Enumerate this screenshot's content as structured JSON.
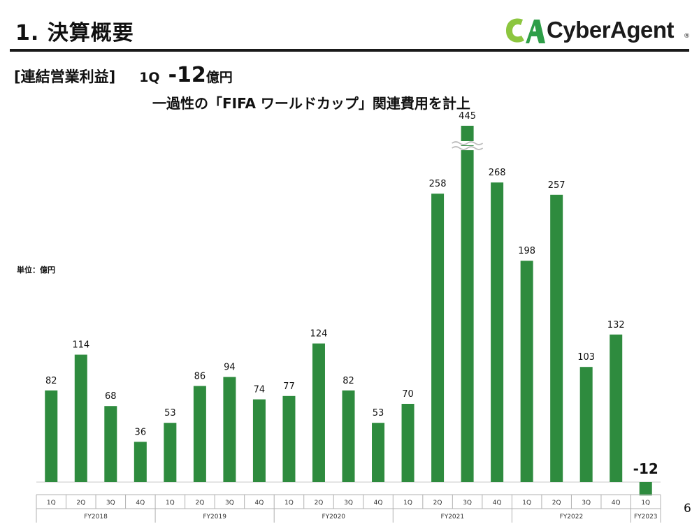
{
  "header": {
    "title": "1.  決算概要",
    "logo_text": "CyberAgent",
    "logo_mark": "CA",
    "logo_registered": "®"
  },
  "headline": {
    "section": "[連結営業利益]",
    "quarter": "1Q",
    "value": "-12",
    "unit": "億円"
  },
  "subheadline": "一過性の「FIFA ワールドカップ」関連費用を計上",
  "unit_note": "単位：億円",
  "page_number": "6",
  "colors": {
    "bar": "#2e8b3e",
    "text": "#111111",
    "logo_green_light": "#8cc63f",
    "logo_green_dark": "#2e9e48"
  },
  "chart_data": {
    "type": "bar",
    "title": "",
    "xlabel": "",
    "ylabel": "",
    "broken_axis_at": "FY2021 3Q",
    "categories": [
      "1Q",
      "2Q",
      "3Q",
      "4Q",
      "1Q",
      "2Q",
      "3Q",
      "4Q",
      "1Q",
      "2Q",
      "3Q",
      "4Q",
      "1Q",
      "2Q",
      "3Q",
      "4Q",
      "1Q",
      "2Q",
      "3Q",
      "4Q",
      "1Q"
    ],
    "groups": [
      {
        "label": "FY2018",
        "count": 4
      },
      {
        "label": "FY2019",
        "count": 4
      },
      {
        "label": "FY2020",
        "count": 4
      },
      {
        "label": "FY2021",
        "count": 4
      },
      {
        "label": "FY2022",
        "count": 4
      },
      {
        "label": "FY2023",
        "count": 1
      }
    ],
    "series": [
      {
        "values": [
          82,
          114,
          68,
          36,
          53,
          86,
          94,
          74,
          77,
          124,
          82,
          53,
          70,
          258,
          445,
          268,
          198,
          257,
          103,
          132,
          -12
        ]
      }
    ],
    "labels": [
      "82",
      "114",
      "68",
      "36",
      "53",
      "86",
      "94",
      "74",
      "77",
      "124",
      "82",
      "53",
      "70",
      "258",
      "445",
      "268",
      "198",
      "257",
      "103",
      "132",
      "-12"
    ],
    "grid": false
  }
}
